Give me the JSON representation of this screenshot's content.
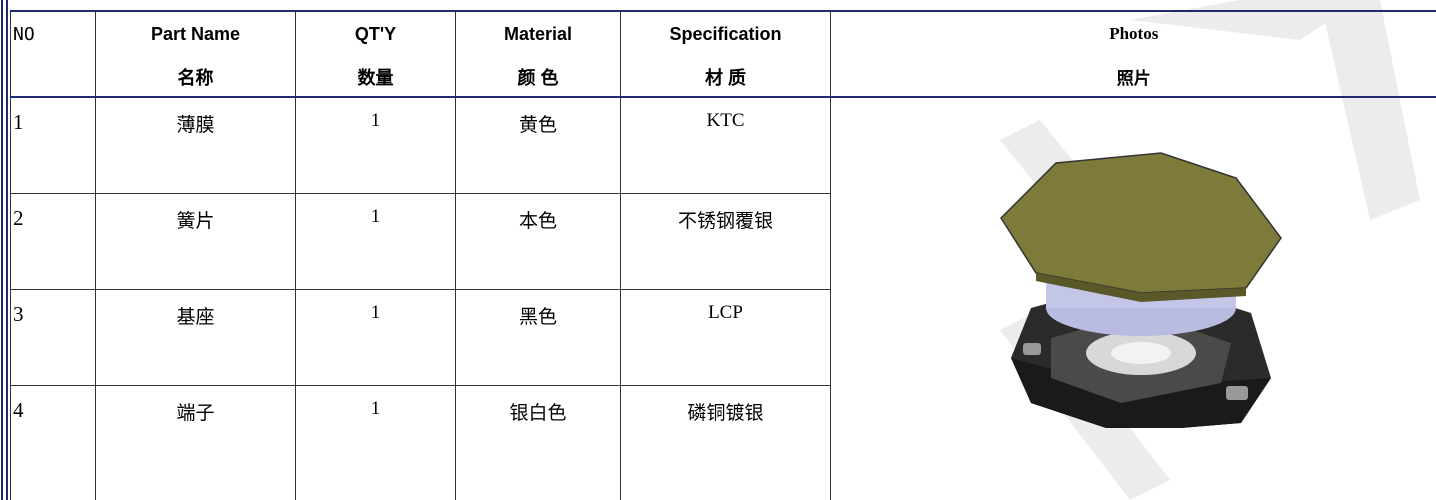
{
  "header": [
    {
      "en": "NO"
    },
    {
      "en": "Part Name",
      "zh": "名称"
    },
    {
      "en": "QT'Y",
      "zh": "数量"
    },
    {
      "en": "Material",
      "zh": "颜 色"
    },
    {
      "en": "Specification",
      "zh": "材 质"
    },
    {
      "en": "Photos",
      "zh": "照片"
    }
  ],
  "rows": [
    [
      "1",
      "薄膜",
      "1",
      "黄色",
      "KTC"
    ],
    [
      "2",
      "簧片",
      "1",
      "本色",
      "不锈钢覆银"
    ],
    [
      "3",
      "基座",
      "1",
      "黑色",
      "LCP"
    ],
    [
      "4",
      "端子",
      "1",
      "银白色",
      "磷铜镀银"
    ]
  ]
}
